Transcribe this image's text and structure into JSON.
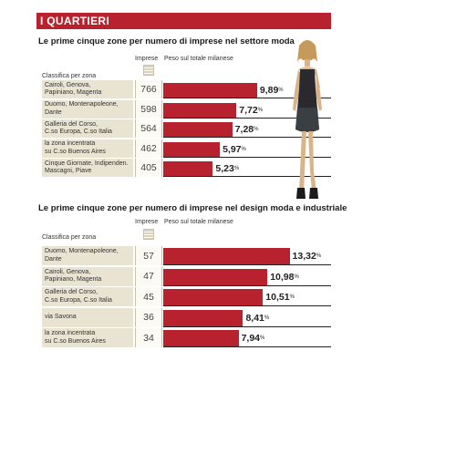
{
  "header": {
    "title": "I QUARTIERI"
  },
  "chart_data": [
    {
      "type": "bar",
      "title": "Le prime cinque zone  per numero di imprese nel settore moda",
      "category_header": "Classifica per zona",
      "count_header": "Imprese",
      "value_header": "Peso sul totale milanese",
      "categories": [
        "Cairoli, Genova,\nPapiniano, Magenta",
        "Duomo, Montenapoleone,\nDante",
        "Galleria del Corso,\nC.so Europa, C.so Italia",
        "la zona incentrata\nsu C.so Buenos Aires",
        "Cinque Giornate, Indipenden.\nMascagni, Piave"
      ],
      "counts": [
        "766",
        "598",
        "564",
        "462",
        "405"
      ],
      "values": [
        9.89,
        7.72,
        7.28,
        5.97,
        5.23
      ],
      "value_labels": [
        "9,89",
        "7,72",
        "7,28",
        "5,97",
        "5,23"
      ],
      "unit": "%",
      "colors": {
        "bar": "#b8222e",
        "label_bg": "#e9e3d2"
      }
    },
    {
      "type": "bar",
      "title": "Le prime cinque zone per numero di imprese nel design moda e industriale",
      "category_header": "Classifica per zona",
      "count_header": "Imprese",
      "value_header": "Peso sul totale milanese",
      "categories": [
        "Duomo, Montenapoleone,\nDante",
        "Cairoli, Genova,\nPapiniano, Magenta",
        "Galleria del Corso,\nC.so Europa, C.so Italia",
        "via Savona",
        "la zona incentrata\nsu C.so Buenos Aires"
      ],
      "counts": [
        "57",
        "47",
        "45",
        "36",
        "34"
      ],
      "values": [
        13.32,
        10.98,
        10.51,
        8.41,
        7.94
      ],
      "value_labels": [
        "13,32",
        "10,98",
        "10,51",
        "8,41",
        "7,94"
      ],
      "unit": "%",
      "colors": {
        "bar": "#b8222e",
        "label_bg": "#e9e3d2"
      }
    }
  ]
}
